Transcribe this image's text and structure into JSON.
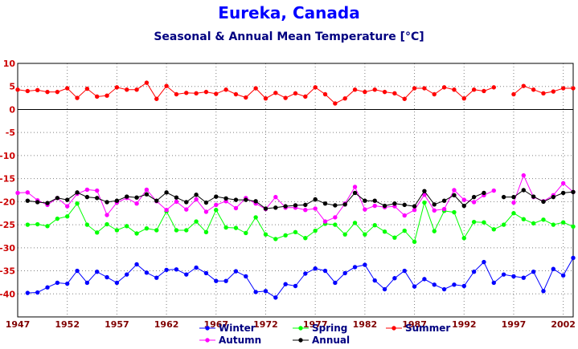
{
  "chart_data": {
    "type": "line",
    "title": "Eureka, Canada",
    "subtitle": "Seasonal & Annual Mean Temperature [°C]",
    "xlabel": "",
    "ylabel": "",
    "xlim": [
      1947,
      2003
    ],
    "ylim": [
      -45,
      10
    ],
    "yticks": [
      10,
      5,
      0,
      -5,
      -10,
      -15,
      -20,
      -25,
      -30,
      -35,
      -40
    ],
    "xticks": [
      1947,
      1952,
      1957,
      1962,
      1967,
      1972,
      1977,
      1982,
      1987,
      1992,
      1997,
      2002
    ],
    "grid": true,
    "legend_position": "bottom",
    "series": [
      {
        "name": "Winter",
        "color": "#0000ff",
        "values": [
          [
            1948,
            -39.8
          ],
          [
            1949,
            -39.7
          ],
          [
            1950,
            -38.6
          ],
          [
            1951,
            -37.6
          ],
          [
            1952,
            -37.8
          ],
          [
            1953,
            -35.0
          ],
          [
            1954,
            -37.6
          ],
          [
            1955,
            -35.2
          ],
          [
            1956,
            -36.4
          ],
          [
            1957,
            -37.6
          ],
          [
            1958,
            -35.8
          ],
          [
            1959,
            -33.6
          ],
          [
            1960,
            -35.4
          ],
          [
            1961,
            -36.5
          ],
          [
            1962,
            -34.8
          ],
          [
            1963,
            -34.7
          ],
          [
            1964,
            -35.8
          ],
          [
            1965,
            -34.3
          ],
          [
            1966,
            -35.5
          ],
          [
            1967,
            -37.2
          ],
          [
            1968,
            -37.2
          ],
          [
            1969,
            -35.1
          ],
          [
            1970,
            -36.2
          ],
          [
            1971,
            -39.6
          ],
          [
            1972,
            -39.4
          ],
          [
            1973,
            -40.8
          ],
          [
            1974,
            -37.9
          ],
          [
            1975,
            -38.3
          ],
          [
            1976,
            -35.6
          ],
          [
            1977,
            -34.5
          ],
          [
            1978,
            -35.0
          ],
          [
            1979,
            -37.6
          ],
          [
            1980,
            -35.5
          ],
          [
            1981,
            -34.2
          ],
          [
            1982,
            -33.7
          ],
          [
            1983,
            -37.1
          ],
          [
            1984,
            -39.0
          ],
          [
            1985,
            -36.6
          ],
          [
            1986,
            -35.0
          ],
          [
            1987,
            -38.4
          ],
          [
            1988,
            -36.8
          ],
          [
            1989,
            -38.0
          ],
          [
            1990,
            -39.0
          ],
          [
            1991,
            -38.0
          ],
          [
            1992,
            -38.3
          ],
          [
            1993,
            -35.2
          ],
          [
            1994,
            -33.1
          ],
          [
            1995,
            -37.6
          ],
          [
            1996,
            -35.8
          ],
          [
            1997,
            -36.2
          ],
          [
            1998,
            -36.5
          ],
          [
            1999,
            -35.2
          ],
          [
            2000,
            -39.4
          ],
          [
            2001,
            -34.6
          ],
          [
            2002,
            -36.0
          ],
          [
            2003,
            -32.2
          ]
        ]
      },
      {
        "name": "Spring",
        "color": "#00ff00",
        "values": [
          [
            1948,
            -25.0
          ],
          [
            1949,
            -24.9
          ],
          [
            1950,
            -25.3
          ],
          [
            1951,
            -23.7
          ],
          [
            1952,
            -23.2
          ],
          [
            1953,
            -20.4
          ],
          [
            1954,
            -25.0
          ],
          [
            1955,
            -26.7
          ],
          [
            1956,
            -24.9
          ],
          [
            1957,
            -26.2
          ],
          [
            1958,
            -25.3
          ],
          [
            1959,
            -26.9
          ],
          [
            1960,
            -25.8
          ],
          [
            1961,
            -26.2
          ],
          [
            1962,
            -22.1
          ],
          [
            1963,
            -26.2
          ],
          [
            1964,
            -26.2
          ],
          [
            1965,
            -24.3
          ],
          [
            1966,
            -26.6
          ],
          [
            1967,
            -21.8
          ],
          [
            1968,
            -25.6
          ],
          [
            1969,
            -25.7
          ],
          [
            1970,
            -26.8
          ],
          [
            1971,
            -23.4
          ],
          [
            1972,
            -27.1
          ],
          [
            1973,
            -28.1
          ],
          [
            1974,
            -27.3
          ],
          [
            1975,
            -26.6
          ],
          [
            1976,
            -27.9
          ],
          [
            1977,
            -26.3
          ],
          [
            1978,
            -24.8
          ],
          [
            1979,
            -25.0
          ],
          [
            1980,
            -27.1
          ],
          [
            1981,
            -24.6
          ],
          [
            1982,
            -27.1
          ],
          [
            1983,
            -25.1
          ],
          [
            1984,
            -26.5
          ],
          [
            1985,
            -27.8
          ],
          [
            1986,
            -26.3
          ],
          [
            1987,
            -28.7
          ],
          [
            1988,
            -20.2
          ],
          [
            1989,
            -26.4
          ],
          [
            1990,
            -22.0
          ],
          [
            1991,
            -22.3
          ],
          [
            1992,
            -27.9
          ],
          [
            1993,
            -24.4
          ],
          [
            1994,
            -24.5
          ],
          [
            1995,
            -26.0
          ],
          [
            1996,
            -25.0
          ],
          [
            1997,
            -22.5
          ],
          [
            1998,
            -23.8
          ],
          [
            1999,
            -24.7
          ],
          [
            2000,
            -23.9
          ],
          [
            2001,
            -25.0
          ],
          [
            2002,
            -24.5
          ],
          [
            2003,
            -25.4
          ]
        ]
      },
      {
        "name": "Summer",
        "color": "#ff0000",
        "values": [
          [
            1947,
            4.3
          ],
          [
            1948,
            4.0
          ],
          [
            1949,
            4.2
          ],
          [
            1950,
            3.8
          ],
          [
            1951,
            3.8
          ],
          [
            1952,
            4.6
          ],
          [
            1953,
            2.5
          ],
          [
            1954,
            4.5
          ],
          [
            1955,
            2.8
          ],
          [
            1956,
            3.0
          ],
          [
            1957,
            4.8
          ],
          [
            1958,
            4.3
          ],
          [
            1959,
            4.3
          ],
          [
            1960,
            5.8
          ],
          [
            1961,
            2.3
          ],
          [
            1962,
            5.1
          ],
          [
            1963,
            3.3
          ],
          [
            1964,
            3.6
          ],
          [
            1965,
            3.5
          ],
          [
            1966,
            3.8
          ],
          [
            1967,
            3.4
          ],
          [
            1968,
            4.3
          ],
          [
            1969,
            3.3
          ],
          [
            1970,
            2.6
          ],
          [
            1971,
            4.6
          ],
          [
            1972,
            2.4
          ],
          [
            1973,
            3.6
          ],
          [
            1974,
            2.5
          ],
          [
            1975,
            3.5
          ],
          [
            1976,
            2.8
          ],
          [
            1977,
            4.8
          ],
          [
            1978,
            3.3
          ],
          [
            1979,
            1.3
          ],
          [
            1980,
            2.4
          ],
          [
            1981,
            4.3
          ],
          [
            1982,
            3.8
          ],
          [
            1983,
            4.3
          ],
          [
            1984,
            3.8
          ],
          [
            1985,
            3.5
          ],
          [
            1986,
            2.3
          ],
          [
            1987,
            4.6
          ],
          [
            1988,
            4.6
          ],
          [
            1989,
            3.3
          ],
          [
            1990,
            4.8
          ],
          [
            1991,
            4.3
          ],
          [
            1992,
            2.4
          ],
          [
            1993,
            4.3
          ],
          [
            1994,
            4.0
          ],
          [
            1995,
            4.8
          ],
          [
            1997,
            3.3
          ],
          [
            1998,
            5.1
          ],
          [
            1999,
            4.3
          ],
          [
            2000,
            3.5
          ],
          [
            2001,
            3.9
          ],
          [
            2002,
            4.6
          ],
          [
            2003,
            4.6
          ]
        ]
      },
      {
        "name": "Autumn",
        "color": "#ff00ff",
        "values": [
          [
            1947,
            -18.1
          ],
          [
            1948,
            -18.0
          ],
          [
            1949,
            -19.7
          ],
          [
            1950,
            -20.7
          ],
          [
            1951,
            -19.2
          ],
          [
            1952,
            -21.0
          ],
          [
            1953,
            -18.3
          ],
          [
            1954,
            -17.4
          ],
          [
            1955,
            -17.6
          ],
          [
            1956,
            -22.9
          ],
          [
            1957,
            -20.2
          ],
          [
            1958,
            -19.2
          ],
          [
            1959,
            -20.4
          ],
          [
            1960,
            -17.4
          ],
          [
            1961,
            -19.9
          ],
          [
            1962,
            -21.8
          ],
          [
            1963,
            -20.0
          ],
          [
            1964,
            -21.7
          ],
          [
            1965,
            -19.5
          ],
          [
            1966,
            -22.2
          ],
          [
            1967,
            -20.7
          ],
          [
            1968,
            -19.9
          ],
          [
            1969,
            -21.4
          ],
          [
            1970,
            -19.2
          ],
          [
            1971,
            -20.4
          ],
          [
            1972,
            -21.6
          ],
          [
            1973,
            -19.0
          ],
          [
            1974,
            -21.3
          ],
          [
            1975,
            -21.3
          ],
          [
            1976,
            -21.8
          ],
          [
            1977,
            -21.5
          ],
          [
            1978,
            -24.3
          ],
          [
            1979,
            -23.4
          ],
          [
            1980,
            -20.4
          ],
          [
            1981,
            -16.8
          ],
          [
            1982,
            -21.7
          ],
          [
            1983,
            -20.9
          ],
          [
            1984,
            -21.2
          ],
          [
            1985,
            -21.0
          ],
          [
            1986,
            -23.0
          ],
          [
            1987,
            -21.8
          ],
          [
            1988,
            -18.5
          ],
          [
            1989,
            -21.9
          ],
          [
            1990,
            -21.6
          ],
          [
            1991,
            -17.5
          ],
          [
            1992,
            -19.6
          ],
          [
            1993,
            -20.1
          ],
          [
            1994,
            -18.6
          ],
          [
            1995,
            -17.6
          ],
          [
            1997,
            -20.2
          ],
          [
            1998,
            -14.3
          ],
          [
            1999,
            -19.0
          ],
          [
            2000,
            -19.9
          ],
          [
            2001,
            -18.6
          ],
          [
            2002,
            -16.0
          ],
          [
            2003,
            -17.9
          ]
        ]
      },
      {
        "name": "Annual",
        "color": "#000000",
        "values": [
          [
            1948,
            -19.8
          ],
          [
            1949,
            -20.1
          ],
          [
            1950,
            -20.3
          ],
          [
            1951,
            -19.2
          ],
          [
            1952,
            -19.6
          ],
          [
            1953,
            -18.0
          ],
          [
            1954,
            -19.0
          ],
          [
            1955,
            -19.2
          ],
          [
            1956,
            -20.1
          ],
          [
            1957,
            -19.8
          ],
          [
            1958,
            -18.9
          ],
          [
            1959,
            -19.1
          ],
          [
            1960,
            -18.4
          ],
          [
            1961,
            -19.8
          ],
          [
            1962,
            -18.0
          ],
          [
            1963,
            -19.1
          ],
          [
            1964,
            -20.1
          ],
          [
            1965,
            -18.5
          ],
          [
            1966,
            -20.2
          ],
          [
            1967,
            -18.9
          ],
          [
            1968,
            -19.3
          ],
          [
            1969,
            -19.6
          ],
          [
            1970,
            -19.6
          ],
          [
            1971,
            -19.9
          ],
          [
            1972,
            -21.5
          ],
          [
            1973,
            -21.3
          ],
          [
            1974,
            -21.0
          ],
          [
            1975,
            -20.8
          ],
          [
            1976,
            -20.7
          ],
          [
            1977,
            -19.5
          ],
          [
            1978,
            -20.4
          ],
          [
            1979,
            -20.8
          ],
          [
            1980,
            -20.6
          ],
          [
            1981,
            -18.1
          ],
          [
            1982,
            -19.8
          ],
          [
            1983,
            -19.8
          ],
          [
            1984,
            -20.9
          ],
          [
            1985,
            -20.4
          ],
          [
            1986,
            -20.7
          ],
          [
            1987,
            -21.0
          ],
          [
            1988,
            -17.7
          ],
          [
            1989,
            -20.6
          ],
          [
            1990,
            -19.8
          ],
          [
            1991,
            -18.6
          ],
          [
            1992,
            -20.9
          ],
          [
            1993,
            -19.0
          ],
          [
            1994,
            -18.1
          ],
          [
            1996,
            -19.0
          ],
          [
            1997,
            -19.0
          ],
          [
            1998,
            -17.5
          ],
          [
            1999,
            -18.9
          ],
          [
            2000,
            -20.0
          ],
          [
            2001,
            -19.0
          ],
          [
            2002,
            -18.1
          ],
          [
            2003,
            -17.9
          ]
        ]
      }
    ]
  }
}
